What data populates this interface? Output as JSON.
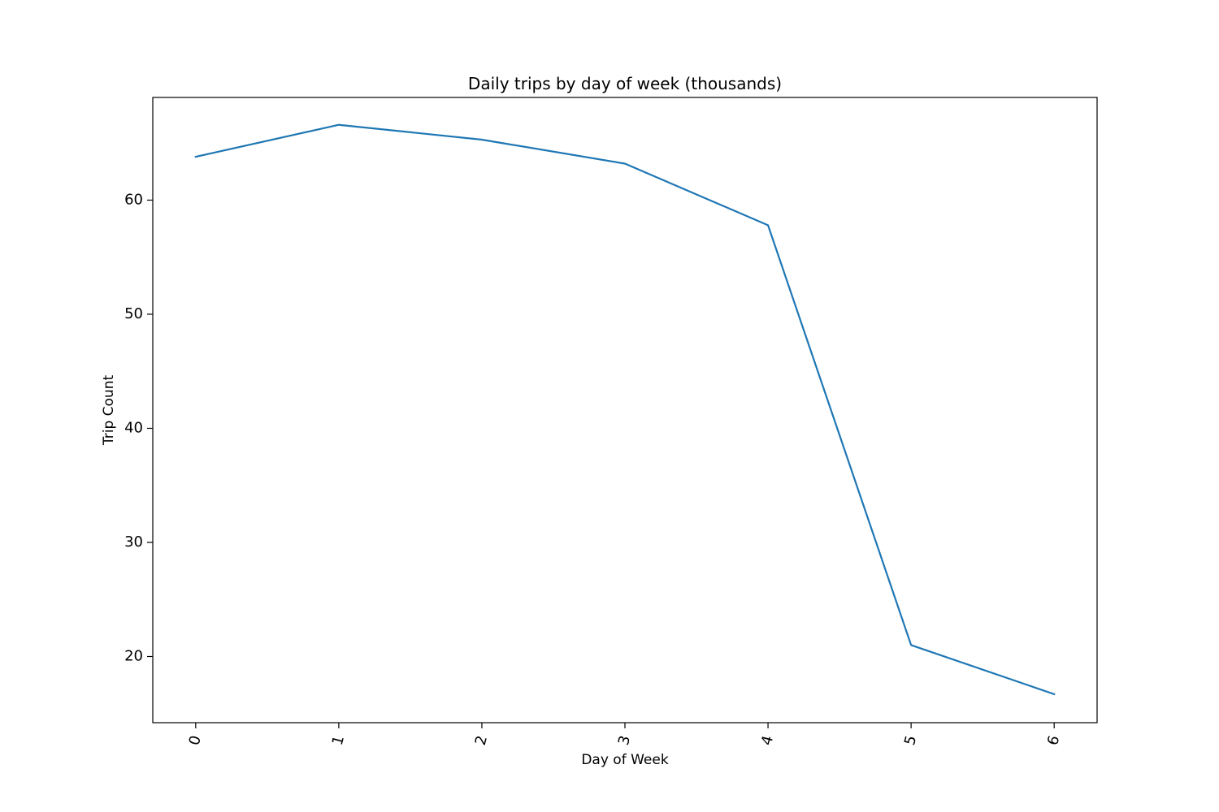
{
  "chart_data": {
    "type": "line",
    "title": "Daily trips by day of week (thousands)",
    "xlabel": "Day of Week",
    "ylabel": "Trip Count",
    "x": [
      0,
      1,
      2,
      3,
      4,
      5,
      6
    ],
    "x_tick_labels": [
      "0",
      "1",
      "2",
      "3",
      "4",
      "5",
      "6"
    ],
    "xlim": [
      -0.3,
      6.3
    ],
    "ylim": [
      14.2,
      69.0
    ],
    "y_ticks": [
      20,
      30,
      40,
      50,
      60
    ],
    "y_tick_labels": [
      "20",
      "30",
      "40",
      "50",
      "60"
    ],
    "series": [
      {
        "values": [
          63.8,
          66.6,
          65.3,
          63.2,
          57.8,
          21.0,
          16.7
        ],
        "color": "#1f77b4"
      }
    ],
    "grid": false,
    "legend": "none"
  }
}
